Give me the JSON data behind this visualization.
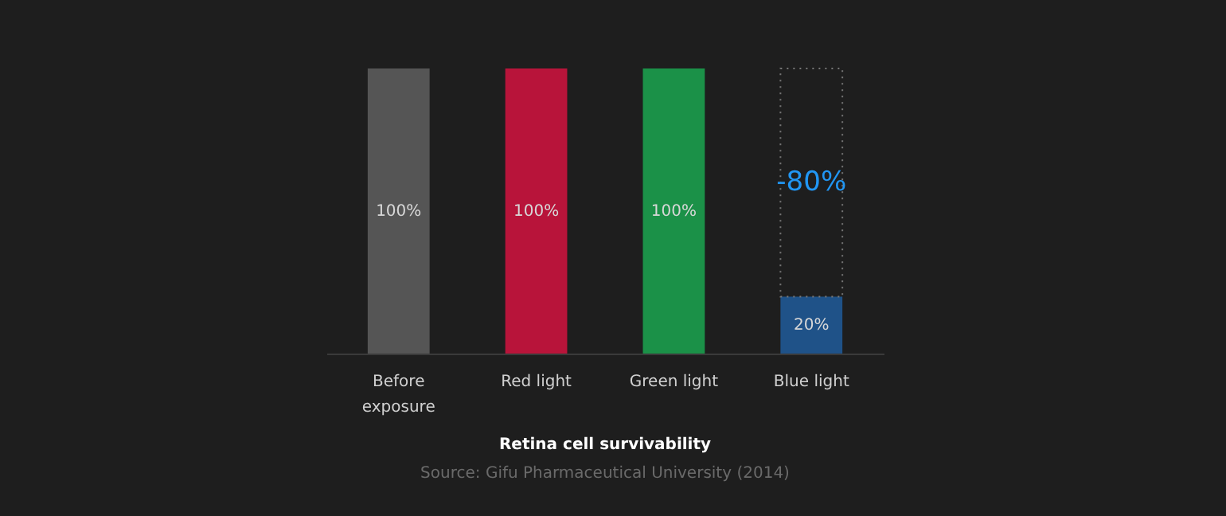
{
  "chart_data": {
    "type": "bar",
    "title": "Retina cell survivability",
    "subtitle": "Source: Gifu Pharmaceutical University (2014)",
    "categories": [
      "Before exposure",
      "Red light",
      "Green light",
      "Blue light"
    ],
    "values": [
      100,
      100,
      100,
      20
    ],
    "colors": [
      "#555555",
      "#b8143a",
      "#1b9148",
      "#1f5288"
    ],
    "value_labels": [
      "100%",
      "100%",
      "100%",
      "20%"
    ],
    "annotations": [
      "-80%"
    ],
    "tick_labels": "x"
  }
}
